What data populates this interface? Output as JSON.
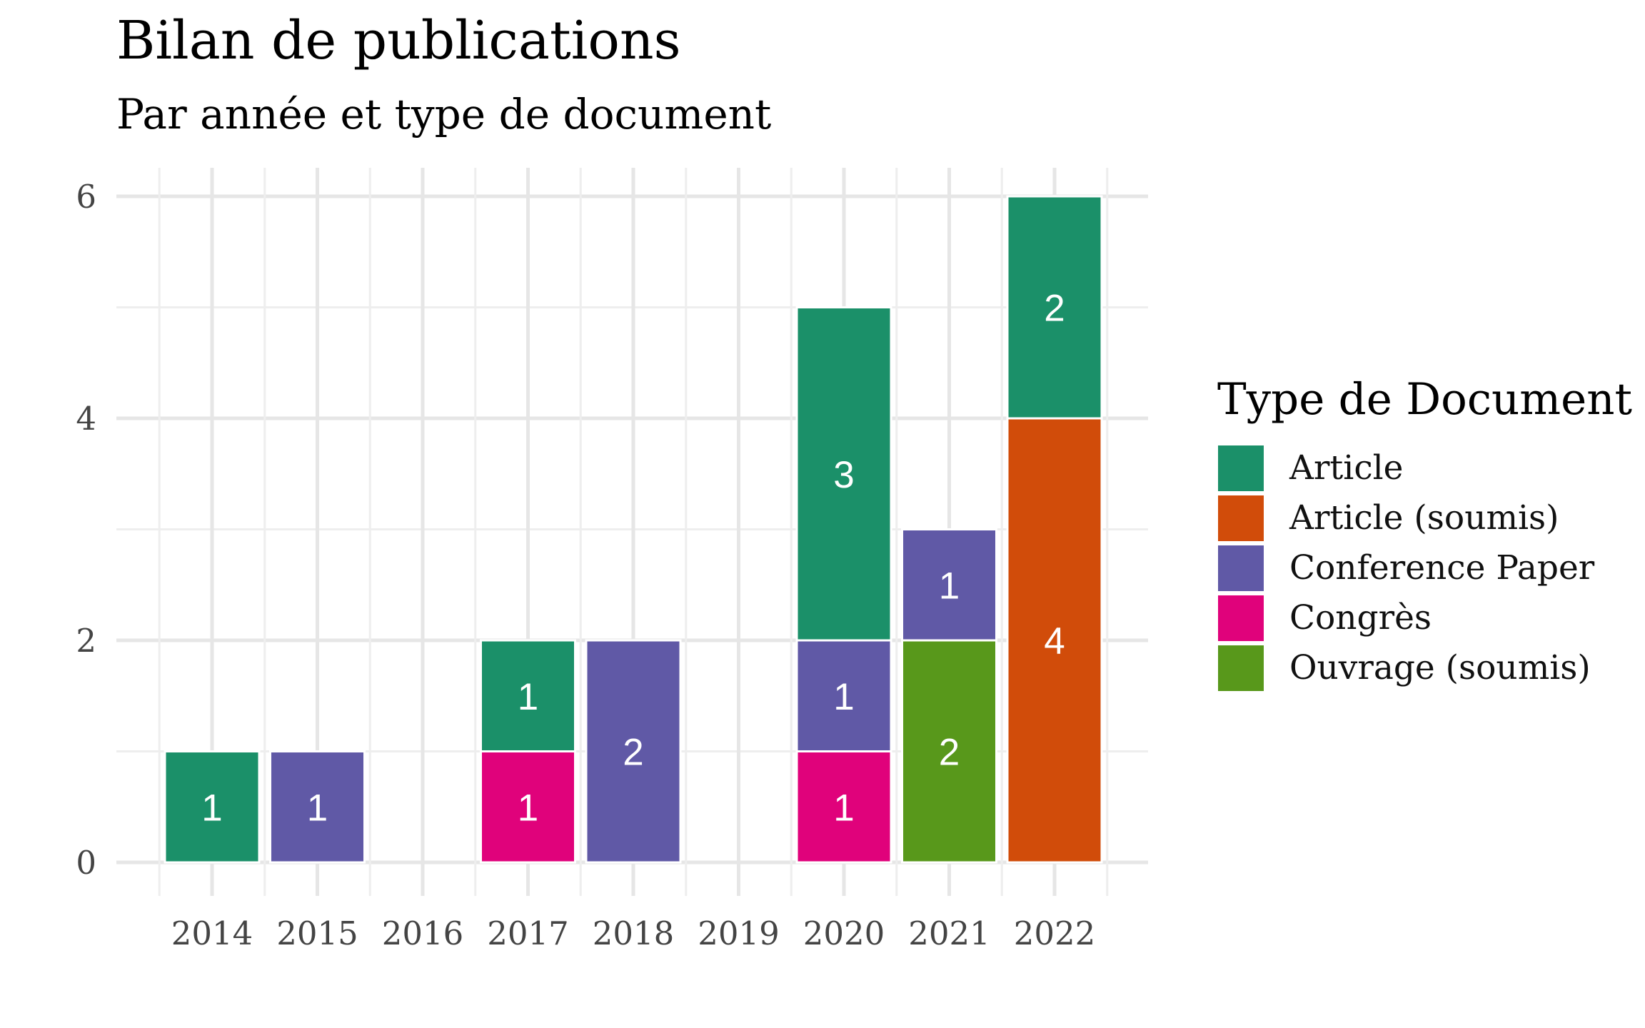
{
  "chart_data": {
    "type": "bar",
    "stacked": true,
    "title": "Bilan de publications",
    "subtitle": "Par année et type de document",
    "xlabel": "",
    "ylabel": "",
    "categories": [
      "2014",
      "2015",
      "2016",
      "2017",
      "2018",
      "2019",
      "2020",
      "2021",
      "2022"
    ],
    "yticks": [
      0,
      2,
      4,
      6
    ],
    "ylim": [
      -0.3,
      6.5
    ],
    "grid": true,
    "legend_position": "right",
    "legend_title": "Type de Document",
    "series": [
      {
        "name": "Article",
        "color": "#1b9069",
        "values": [
          1,
          0,
          0,
          1,
          0,
          0,
          3,
          0,
          2
        ]
      },
      {
        "name": "Article (soumis)",
        "color": "#d14c0a",
        "values": [
          0,
          0,
          0,
          0,
          0,
          0,
          0,
          0,
          4
        ]
      },
      {
        "name": "Conference Paper",
        "color": "#6059a6",
        "values": [
          0,
          1,
          0,
          0,
          2,
          0,
          1,
          1,
          0
        ]
      },
      {
        "name": "Congrès",
        "color": "#e0027b",
        "values": [
          0,
          0,
          0,
          1,
          0,
          0,
          1,
          0,
          0
        ]
      },
      {
        "name": "Ouvrage (soumis)",
        "color": "#58981b",
        "values": [
          0,
          0,
          0,
          0,
          0,
          0,
          0,
          2,
          0
        ]
      }
    ],
    "stack_order_bottom_to_top": [
      "Ouvrage (soumis)",
      "Congrès",
      "Conference Paper",
      "Article (soumis)",
      "Article"
    ]
  }
}
